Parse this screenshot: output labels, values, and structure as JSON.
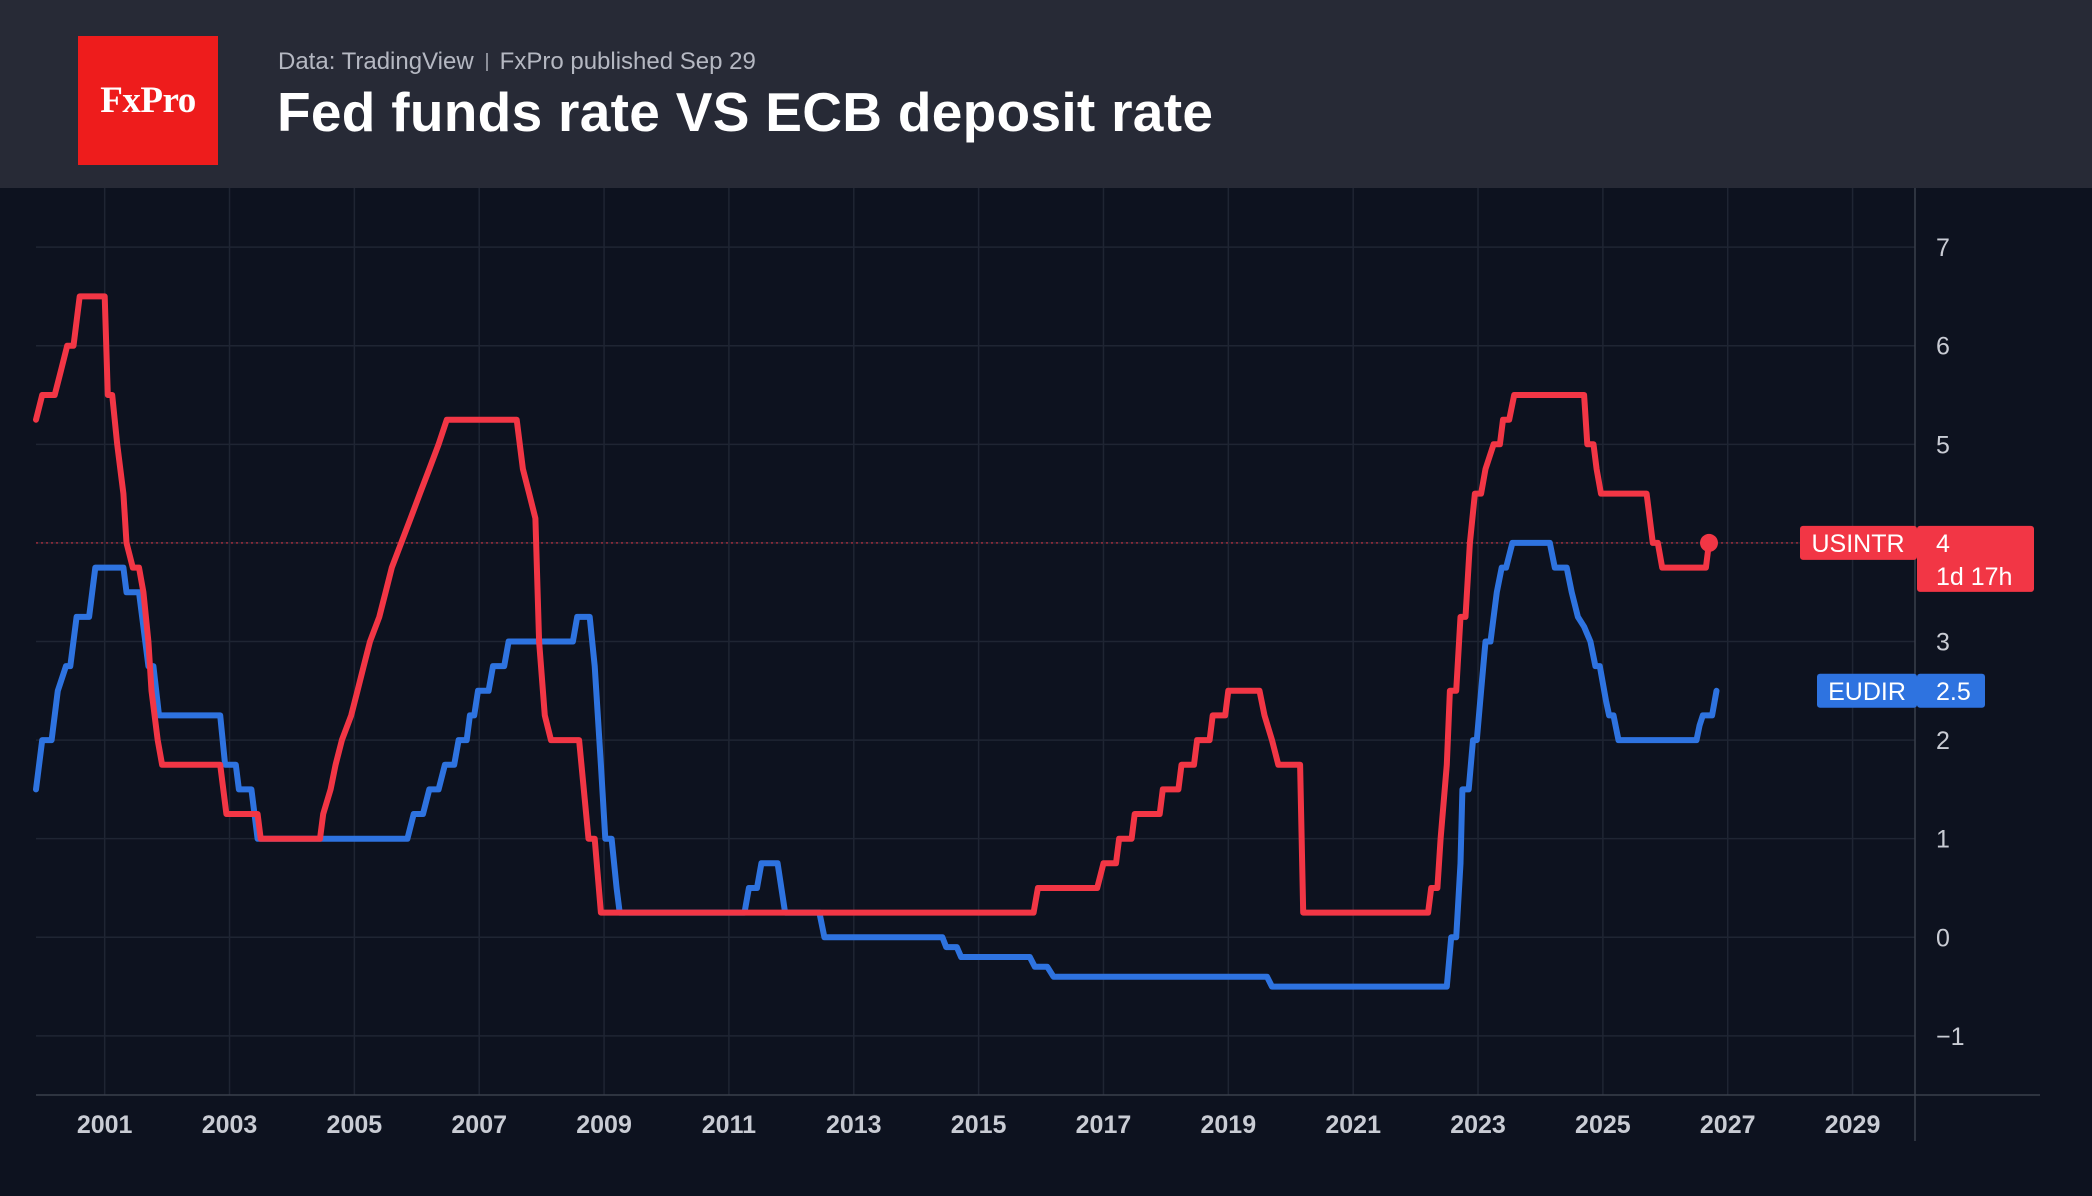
{
  "header": {
    "logo_text": "FxPro",
    "source_text": "Data: TradingView",
    "published_text": "FxPro published Sep 29",
    "title": "Fed funds rate VS ECB deposit rate"
  },
  "chart_data": {
    "type": "line",
    "title": "Fed funds rate VS ECB deposit rate",
    "xlabel": "",
    "ylabel": "",
    "xlim": [
      1999.9,
      2030.0
    ],
    "ylim": [
      -1.6,
      7.6
    ],
    "grid": true,
    "x_ticks": [
      "2001",
      "2003",
      "2005",
      "2007",
      "2009",
      "2011",
      "2013",
      "2015",
      "2017",
      "2019",
      "2021",
      "2023",
      "2025",
      "2027",
      "2029"
    ],
    "y_ticks": [
      "7",
      "6",
      "5",
      "4",
      "3",
      "2",
      "1",
      "0",
      "−1"
    ],
    "series": [
      {
        "name": "USINTR",
        "color": "#f23645",
        "last_value_label": "4",
        "countdown_label": "1d 17h",
        "points": [
          [
            1999.9,
            5.25
          ],
          [
            2000.0,
            5.5
          ],
          [
            2000.2,
            5.5
          ],
          [
            2000.3,
            5.75
          ],
          [
            2000.4,
            6.0
          ],
          [
            2000.5,
            6.0
          ],
          [
            2000.6,
            6.5
          ],
          [
            2001.0,
            6.5
          ],
          [
            2001.05,
            5.5
          ],
          [
            2001.12,
            5.5
          ],
          [
            2001.2,
            5.0
          ],
          [
            2001.3,
            4.5
          ],
          [
            2001.35,
            4.0
          ],
          [
            2001.45,
            3.75
          ],
          [
            2001.55,
            3.75
          ],
          [
            2001.62,
            3.5
          ],
          [
            2001.7,
            3.0
          ],
          [
            2001.75,
            2.5
          ],
          [
            2001.85,
            2.0
          ],
          [
            2001.92,
            1.75
          ],
          [
            2002.85,
            1.75
          ],
          [
            2002.95,
            1.25
          ],
          [
            2003.45,
            1.25
          ],
          [
            2003.5,
            1.0
          ],
          [
            2004.45,
            1.0
          ],
          [
            2004.5,
            1.25
          ],
          [
            2004.62,
            1.5
          ],
          [
            2004.7,
            1.75
          ],
          [
            2004.8,
            2.0
          ],
          [
            2004.95,
            2.25
          ],
          [
            2005.05,
            2.5
          ],
          [
            2005.15,
            2.75
          ],
          [
            2005.25,
            3.0
          ],
          [
            2005.4,
            3.25
          ],
          [
            2005.5,
            3.5
          ],
          [
            2005.6,
            3.75
          ],
          [
            2005.75,
            4.0
          ],
          [
            2005.9,
            4.25
          ],
          [
            2006.05,
            4.5
          ],
          [
            2006.2,
            4.75
          ],
          [
            2006.35,
            5.0
          ],
          [
            2006.48,
            5.25
          ],
          [
            2007.6,
            5.25
          ],
          [
            2007.7,
            4.75
          ],
          [
            2007.8,
            4.5
          ],
          [
            2007.9,
            4.25
          ],
          [
            2007.96,
            3.0
          ],
          [
            2008.05,
            2.25
          ],
          [
            2008.15,
            2.0
          ],
          [
            2008.6,
            2.0
          ],
          [
            2008.75,
            1.0
          ],
          [
            2008.85,
            1.0
          ],
          [
            2008.95,
            0.25
          ],
          [
            2015.88,
            0.25
          ],
          [
            2015.95,
            0.5
          ],
          [
            2016.9,
            0.5
          ],
          [
            2017.0,
            0.75
          ],
          [
            2017.2,
            0.75
          ],
          [
            2017.25,
            1.0
          ],
          [
            2017.45,
            1.0
          ],
          [
            2017.5,
            1.25
          ],
          [
            2017.9,
            1.25
          ],
          [
            2017.95,
            1.5
          ],
          [
            2018.2,
            1.5
          ],
          [
            2018.25,
            1.75
          ],
          [
            2018.45,
            1.75
          ],
          [
            2018.5,
            2.0
          ],
          [
            2018.7,
            2.0
          ],
          [
            2018.75,
            2.25
          ],
          [
            2018.95,
            2.25
          ],
          [
            2019.0,
            2.5
          ],
          [
            2019.5,
            2.5
          ],
          [
            2019.58,
            2.25
          ],
          [
            2019.7,
            2.0
          ],
          [
            2019.8,
            1.75
          ],
          [
            2020.15,
            1.75
          ],
          [
            2020.2,
            0.25
          ],
          [
            2022.2,
            0.25
          ],
          [
            2022.25,
            0.5
          ],
          [
            2022.35,
            0.5
          ],
          [
            2022.4,
            1.0
          ],
          [
            2022.5,
            1.75
          ],
          [
            2022.55,
            2.5
          ],
          [
            2022.65,
            2.5
          ],
          [
            2022.72,
            3.25
          ],
          [
            2022.8,
            3.25
          ],
          [
            2022.87,
            4.0
          ],
          [
            2022.95,
            4.5
          ],
          [
            2023.05,
            4.5
          ],
          [
            2023.12,
            4.75
          ],
          [
            2023.25,
            5.0
          ],
          [
            2023.35,
            5.0
          ],
          [
            2023.4,
            5.25
          ],
          [
            2023.5,
            5.25
          ],
          [
            2023.58,
            5.5
          ],
          [
            2024.7,
            5.5
          ],
          [
            2024.75,
            5.0
          ],
          [
            2024.85,
            5.0
          ],
          [
            2024.9,
            4.75
          ],
          [
            2024.97,
            4.5
          ],
          [
            2025.7,
            4.5
          ],
          [
            2025.75,
            4.25
          ],
          [
            2025.8,
            4.0
          ],
          [
            2025.88,
            4.0
          ],
          [
            2025.95,
            3.75
          ],
          [
            2026.65,
            3.75
          ],
          [
            2026.7,
            4.0
          ]
        ]
      },
      {
        "name": "EUDIR",
        "color": "#2e73e0",
        "last_value_label": "2.5",
        "points": [
          [
            1999.9,
            1.5
          ],
          [
            2000.0,
            2.0
          ],
          [
            2000.15,
            2.0
          ],
          [
            2000.25,
            2.5
          ],
          [
            2000.38,
            2.75
          ],
          [
            2000.45,
            2.75
          ],
          [
            2000.55,
            3.25
          ],
          [
            2000.75,
            3.25
          ],
          [
            2000.85,
            3.75
          ],
          [
            2001.3,
            3.75
          ],
          [
            2001.35,
            3.5
          ],
          [
            2001.55,
            3.5
          ],
          [
            2001.7,
            2.75
          ],
          [
            2001.78,
            2.75
          ],
          [
            2001.87,
            2.25
          ],
          [
            2002.85,
            2.25
          ],
          [
            2002.93,
            1.75
          ],
          [
            2003.1,
            1.75
          ],
          [
            2003.15,
            1.5
          ],
          [
            2003.35,
            1.5
          ],
          [
            2003.45,
            1.0
          ],
          [
            2005.85,
            1.0
          ],
          [
            2005.95,
            1.25
          ],
          [
            2006.1,
            1.25
          ],
          [
            2006.2,
            1.5
          ],
          [
            2006.35,
            1.5
          ],
          [
            2006.45,
            1.75
          ],
          [
            2006.6,
            1.75
          ],
          [
            2006.67,
            2.0
          ],
          [
            2006.8,
            2.0
          ],
          [
            2006.85,
            2.25
          ],
          [
            2006.92,
            2.25
          ],
          [
            2006.98,
            2.5
          ],
          [
            2007.15,
            2.5
          ],
          [
            2007.22,
            2.75
          ],
          [
            2007.4,
            2.75
          ],
          [
            2007.47,
            3.0
          ],
          [
            2008.5,
            3.0
          ],
          [
            2008.57,
            3.25
          ],
          [
            2008.77,
            3.25
          ],
          [
            2008.85,
            2.75
          ],
          [
            2008.95,
            1.75
          ],
          [
            2009.02,
            1.0
          ],
          [
            2009.12,
            1.0
          ],
          [
            2009.2,
            0.5
          ],
          [
            2009.25,
            0.25
          ],
          [
            2011.25,
            0.25
          ],
          [
            2011.32,
            0.5
          ],
          [
            2011.45,
            0.5
          ],
          [
            2011.52,
            0.75
          ],
          [
            2011.78,
            0.75
          ],
          [
            2011.9,
            0.25
          ],
          [
            2012.45,
            0.25
          ],
          [
            2012.53,
            0.0
          ],
          [
            2014.42,
            0.0
          ],
          [
            2014.48,
            -0.1
          ],
          [
            2014.65,
            -0.1
          ],
          [
            2014.72,
            -0.2
          ],
          [
            2015.82,
            -0.2
          ],
          [
            2015.9,
            -0.3
          ],
          [
            2016.1,
            -0.3
          ],
          [
            2016.2,
            -0.4
          ],
          [
            2019.62,
            -0.4
          ],
          [
            2019.7,
            -0.5
          ],
          [
            2022.5,
            -0.5
          ],
          [
            2022.57,
            0.0
          ],
          [
            2022.65,
            0.0
          ],
          [
            2022.72,
            0.75
          ],
          [
            2022.75,
            1.5
          ],
          [
            2022.85,
            1.5
          ],
          [
            2022.92,
            2.0
          ],
          [
            2022.98,
            2.0
          ],
          [
            2023.05,
            2.5
          ],
          [
            2023.12,
            3.0
          ],
          [
            2023.2,
            3.0
          ],
          [
            2023.3,
            3.5
          ],
          [
            2023.38,
            3.75
          ],
          [
            2023.45,
            3.75
          ],
          [
            2023.55,
            4.0
          ],
          [
            2024.15,
            4.0
          ],
          [
            2024.23,
            3.75
          ],
          [
            2024.42,
            3.75
          ],
          [
            2024.5,
            3.5
          ],
          [
            2024.6,
            3.25
          ],
          [
            2024.7,
            3.15
          ],
          [
            2024.8,
            3.0
          ],
          [
            2024.88,
            2.75
          ],
          [
            2024.95,
            2.75
          ],
          [
            2025.05,
            2.4
          ],
          [
            2025.1,
            2.25
          ],
          [
            2025.17,
            2.25
          ],
          [
            2025.25,
            2.0
          ],
          [
            2026.5,
            2.0
          ],
          [
            2026.55,
            2.15
          ],
          [
            2026.6,
            2.25
          ],
          [
            2026.75,
            2.25
          ],
          [
            2026.82,
            2.5
          ]
        ]
      }
    ]
  }
}
